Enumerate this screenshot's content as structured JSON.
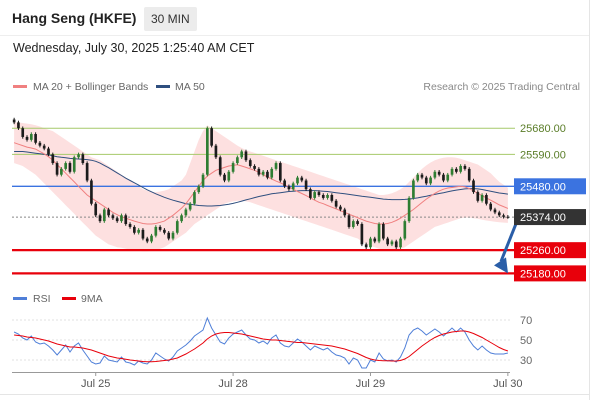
{
  "header": {
    "title": "Hang Seng (HKFE)",
    "timeframe": "30 MIN",
    "datetime": "Wednesday, July 30, 2025 1:25:40 AM CET"
  },
  "colors": {
    "ma20": "#f08080",
    "band_fill": "#fde0e0",
    "ma50": "#2f4f7f",
    "resistance": "#a6c96a",
    "pivot": "#3b73e0",
    "support": "#e8000b",
    "current": "#333333",
    "candle_up": "#2e7d32",
    "candle_down": "#1b1b1b",
    "rsi": "#4f7fd8",
    "rsi_ma": "#e8000b",
    "arrow": "#2a5ea8"
  },
  "chart_data": [
    {
      "type": "candlestick",
      "legend": [
        {
          "name": "MA 20 + Bollinger Bands",
          "color": "#f08080"
        },
        {
          "name": "MA 50",
          "color": "#2f4f7f"
        }
      ],
      "credit": "Research © 2025 Trading Central",
      "x_tick_labels": [
        {
          "label": "Jul 25",
          "index": 19
        },
        {
          "label": "Jul 28",
          "index": 51
        },
        {
          "label": "Jul 29",
          "index": 83
        },
        {
          "label": "Jul 30",
          "index": 115
        }
      ],
      "ylim": [
        25140,
        25760
      ],
      "levels": [
        {
          "label": "25680.00",
          "value": 25680,
          "kind": "resistance"
        },
        {
          "label": "25590.00",
          "value": 25590,
          "kind": "resistance"
        },
        {
          "label": "25480.00",
          "value": 25480,
          "kind": "pivot"
        },
        {
          "label": "25374.00",
          "value": 25374,
          "kind": "current"
        },
        {
          "label": "25260.00",
          "value": 25260,
          "kind": "support"
        },
        {
          "label": "25180.00",
          "value": 25180,
          "kind": "support"
        }
      ],
      "close": [
        25700,
        25680,
        25650,
        25640,
        25660,
        25630,
        25620,
        25610,
        25590,
        25560,
        25520,
        25540,
        25560,
        25530,
        25580,
        25590,
        25560,
        25500,
        25420,
        25380,
        25360,
        25400,
        25380,
        25370,
        25360,
        25380,
        25350,
        25340,
        25320,
        25330,
        25300,
        25290,
        25310,
        25340,
        25330,
        25320,
        25300,
        25320,
        25360,
        25380,
        25400,
        25420,
        25460,
        25480,
        25520,
        25680,
        25620,
        25580,
        25520,
        25500,
        25530,
        25560,
        25580,
        25600,
        25570,
        25550,
        25540,
        25520,
        25530,
        25510,
        25540,
        25560,
        25500,
        25480,
        25470,
        25490,
        25510,
        25500,
        25470,
        25440,
        25460,
        25450,
        25440,
        25450,
        25430,
        25410,
        25400,
        25380,
        25340,
        25360,
        25350,
        25280,
        25270,
        25300,
        25290,
        25350,
        25300,
        25280,
        25290,
        25270,
        25300,
        25360,
        25440,
        25500,
        25520,
        25510,
        25490,
        25510,
        25530,
        25520,
        25500,
        25520,
        25540,
        25530,
        25550,
        25540,
        25500,
        25460,
        25430,
        25450,
        25420,
        25400,
        25390,
        25380,
        25375,
        25374
      ],
      "ma20": [
        25630,
        25625,
        25620,
        25615,
        25612,
        25608,
        25600,
        25592,
        25582,
        25570,
        25555,
        25540,
        25525,
        25510,
        25495,
        25480,
        25465,
        25450,
        25440,
        25430,
        25420,
        25410,
        25400,
        25390,
        25382,
        25375,
        25370,
        25365,
        25360,
        25356,
        25352,
        25350,
        25350,
        25352,
        25356,
        25360,
        25370,
        25380,
        25392,
        25405,
        25420,
        25440,
        25460,
        25480,
        25500,
        25515,
        25525,
        25535,
        25540,
        25545,
        25550,
        25552,
        25554,
        25550,
        25545,
        25540,
        25535,
        25528,
        25520,
        25512,
        25505,
        25498,
        25492,
        25485,
        25478,
        25470,
        25462,
        25455,
        25448,
        25440,
        25432,
        25425,
        25420,
        25414,
        25408,
        25402,
        25396,
        25390,
        25384,
        25378,
        25372,
        25366,
        25360,
        25356,
        25352,
        25350,
        25350,
        25352,
        25356,
        25362,
        25370,
        25380,
        25390,
        25400,
        25412,
        25424,
        25436,
        25446,
        25456,
        25464,
        25470,
        25474,
        25476,
        25478,
        25480,
        25478,
        25472,
        25464,
        25456,
        25448,
        25440,
        25432,
        25424,
        25416,
        25410,
        25404
      ],
      "band_upper": [
        25700,
        25700,
        25698,
        25696,
        25694,
        25690,
        25686,
        25680,
        25675,
        25670,
        25660,
        25650,
        25640,
        25630,
        25620,
        25610,
        25600,
        25590,
        25580,
        25575,
        25570,
        25560,
        25550,
        25540,
        25530,
        25520,
        25510,
        25500,
        25490,
        25480,
        25470,
        25465,
        25460,
        25460,
        25462,
        25465,
        25470,
        25480,
        25490,
        25500,
        25520,
        25560,
        25600,
        25640,
        25670,
        25690,
        25680,
        25670,
        25660,
        25650,
        25640,
        25630,
        25620,
        25612,
        25605,
        25600,
        25595,
        25590,
        25585,
        25580,
        25575,
        25570,
        25565,
        25560,
        25555,
        25550,
        25545,
        25540,
        25535,
        25530,
        25525,
        25520,
        25515,
        25510,
        25505,
        25500,
        25495,
        25490,
        25485,
        25480,
        25475,
        25470,
        25465,
        25460,
        25455,
        25450,
        25450,
        25452,
        25456,
        25462,
        25470,
        25480,
        25495,
        25510,
        25525,
        25540,
        25552,
        25562,
        25570,
        25575,
        25578,
        25580,
        25580,
        25578,
        25575,
        25570,
        25565,
        25560,
        25555,
        25545,
        25535,
        25525,
        25510,
        25495,
        25485,
        25475
      ],
      "band_lower": [
        25560,
        25555,
        25550,
        25540,
        25530,
        25520,
        25505,
        25490,
        25475,
        25460,
        25445,
        25430,
        25415,
        25400,
        25385,
        25370,
        25355,
        25340,
        25325,
        25310,
        25300,
        25290,
        25280,
        25275,
        25270,
        25268,
        25265,
        25262,
        25260,
        25258,
        25256,
        25256,
        25258,
        25260,
        25265,
        25270,
        25280,
        25290,
        25300,
        25310,
        25320,
        25335,
        25350,
        25360,
        25370,
        25380,
        25390,
        25400,
        25410,
        25420,
        25425,
        25428,
        25430,
        25430,
        25428,
        25425,
        25420,
        25415,
        25410,
        25405,
        25400,
        25395,
        25390,
        25385,
        25380,
        25375,
        25370,
        25365,
        25360,
        25355,
        25350,
        25345,
        25340,
        25335,
        25330,
        25325,
        25320,
        25315,
        25310,
        25305,
        25300,
        25290,
        25280,
        25275,
        25270,
        25265,
        25262,
        25260,
        25260,
        25262,
        25265,
        25270,
        25280,
        25290,
        25300,
        25310,
        25320,
        25330,
        25340,
        25345,
        25350,
        25355,
        25360,
        25365,
        25370,
        25372,
        25372,
        25370,
        25368,
        25365,
        25362,
        25360,
        25358,
        25356,
        25355,
        25354
      ],
      "ma50": [
        25600,
        25600,
        25600,
        25598,
        25596,
        25594,
        25592,
        25590,
        25588,
        25585,
        25582,
        25580,
        25578,
        25576,
        25575,
        25574,
        25573,
        25572,
        25570,
        25566,
        25560,
        25552,
        25544,
        25535,
        25526,
        25517,
        25508,
        25500,
        25492,
        25484,
        25476,
        25468,
        25461,
        25454,
        25448,
        25442,
        25437,
        25432,
        25428,
        25424,
        25420,
        25418,
        25416,
        25414,
        25413,
        25412,
        25412,
        25413,
        25414,
        25416,
        25418,
        25421,
        25425,
        25429,
        25433,
        25437,
        25441,
        25445,
        25448,
        25451,
        25454,
        25456,
        25458,
        25460,
        25462,
        25463,
        25464,
        25465,
        25465,
        25465,
        25465,
        25464,
        25463,
        25462,
        25460,
        25458,
        25456,
        25454,
        25452,
        25450,
        25448,
        25446,
        25444,
        25442,
        25440,
        25438,
        25436,
        25435,
        25434,
        25434,
        25434,
        25435,
        25436,
        25438,
        25440,
        25443,
        25446,
        25449,
        25452,
        25455,
        25458,
        25461,
        25464,
        25467,
        25469,
        25471,
        25472,
        25472,
        25471,
        25469,
        25466,
        25463,
        25460,
        25457,
        25455,
        25453
      ]
    },
    {
      "type": "line",
      "legend": [
        {
          "name": "RSI",
          "color": "#4f7fd8"
        },
        {
          "name": "9MA",
          "color": "#e8000b"
        }
      ],
      "ylim": [
        20,
        78
      ],
      "y_ticks": [
        {
          "label": "70",
          "value": 70
        },
        {
          "label": "50",
          "value": 50
        },
        {
          "label": "30",
          "value": 30
        }
      ],
      "rsi": [
        58,
        56,
        52,
        50,
        54,
        48,
        46,
        47,
        44,
        40,
        35,
        40,
        45,
        38,
        44,
        47,
        40,
        34,
        28,
        26,
        27,
        34,
        30,
        29,
        28,
        33,
        28,
        27,
        25,
        29,
        27,
        26,
        30,
        37,
        34,
        31,
        29,
        33,
        39,
        42,
        45,
        49,
        54,
        57,
        60,
        72,
        62,
        55,
        48,
        46,
        52,
        56,
        58,
        60,
        55,
        51,
        50,
        47,
        49,
        46,
        52,
        55,
        47,
        44,
        43,
        47,
        51,
        48,
        44,
        40,
        44,
        42,
        40,
        42,
        38,
        35,
        34,
        32,
        26,
        32,
        30,
        22,
        22,
        30,
        28,
        37,
        31,
        29,
        30,
        28,
        33,
        42,
        55,
        60,
        62,
        59,
        55,
        58,
        61,
        58,
        54,
        58,
        62,
        58,
        62,
        58,
        50,
        44,
        40,
        44,
        40,
        37,
        36,
        36,
        36,
        37
      ],
      "rsi_ma": [
        55,
        54.5,
        54,
        53,
        52.5,
        52,
        51,
        50,
        49,
        47.5,
        46,
        45,
        44,
        43,
        43,
        42.5,
        42,
        41,
        40,
        38.5,
        37,
        35.5,
        34,
        33,
        32,
        31.5,
        30.8,
        30,
        29.5,
        29,
        28.5,
        28.3,
        28.2,
        28.5,
        29,
        29.5,
        30,
        31,
        32,
        34,
        36,
        38.5,
        41,
        44,
        47,
        51,
        54,
        56,
        57,
        57.5,
        57.5,
        57,
        56.5,
        56,
        55,
        54,
        53,
        52,
        51,
        50.5,
        50,
        50,
        49.5,
        49,
        48.5,
        48,
        47.5,
        47.5,
        47,
        46.5,
        46,
        45.5,
        45,
        44.5,
        44,
        43,
        42,
        41,
        39.5,
        38,
        36.5,
        34.5,
        32.5,
        31,
        30,
        29.5,
        29.3,
        29.2,
        29,
        29,
        29.5,
        31,
        33.5,
        37,
        40.5,
        44,
        47,
        50,
        52.5,
        54.5,
        56,
        57,
        58,
        58.5,
        59,
        59,
        58,
        56.5,
        54.5,
        52.5,
        50,
        47.5,
        45,
        42.5,
        40.5,
        39
      ]
    }
  ]
}
